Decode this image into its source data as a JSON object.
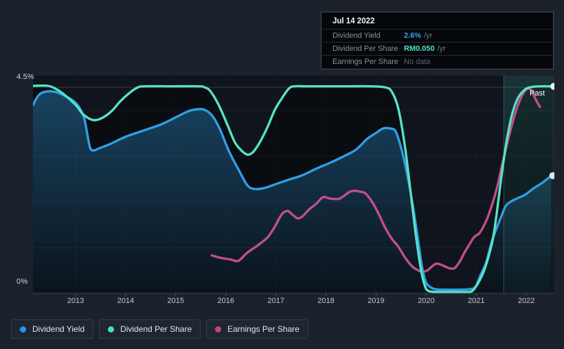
{
  "tooltip": {
    "date": "Jul 14 2022",
    "rows": [
      {
        "label": "Dividend Yield",
        "value": "2.6%",
        "unit": "/yr",
        "color": "#3aa4ea"
      },
      {
        "label": "Dividend Per Share",
        "value": "RM0.050",
        "unit": "/yr",
        "color": "#55e2c6"
      },
      {
        "label": "Earnings Per Share",
        "value": "No data",
        "unit": "",
        "color": "#5f6670"
      }
    ]
  },
  "axis": {
    "y_top_label": "4.5%",
    "y_bottom_label": "0%",
    "years": [
      "2013",
      "2014",
      "2015",
      "2016",
      "2017",
      "2018",
      "2019",
      "2020",
      "2021",
      "2022"
    ]
  },
  "past_label": "Past",
  "legend": {
    "items": [
      {
        "label": "Dividend Yield",
        "color": "#2196f3"
      },
      {
        "label": "Dividend Per Share",
        "color": "#45e0c2"
      },
      {
        "label": "Earnings Per Share",
        "color": "#c2447f"
      }
    ]
  },
  "chart_data": {
    "type": "line",
    "title": "Dividend history (yield, dividend per share, earnings per share)",
    "x_domain": [
      2012.15,
      2022.56
    ],
    "y_domain": [
      0,
      4.5
    ],
    "y_unit": "percent (yield axis; other series drawn on normalized hidden scales)",
    "y_gridlines_pct": [
      4.5,
      4,
      3,
      2,
      1,
      0
    ],
    "x_ticks": [
      2013,
      2014,
      2015,
      2016,
      2017,
      2018,
      2019,
      2020,
      2021,
      2022
    ],
    "past_divider_x": 2021.55,
    "legend_position": "bottom-left",
    "grid": true,
    "series": [
      {
        "name": "Earnings Per Share",
        "color": "#c14f8a",
        "fill": "none",
        "end_dot": false,
        "points": [
          [
            2015.72,
            0.83
          ],
          [
            2015.88,
            0.78
          ],
          [
            2016.09,
            0.74
          ],
          [
            2016.25,
            0.71
          ],
          [
            2016.43,
            0.89
          ],
          [
            2016.64,
            1.05
          ],
          [
            2016.84,
            1.23
          ],
          [
            2016.98,
            1.46
          ],
          [
            2017.12,
            1.73
          ],
          [
            2017.23,
            1.8
          ],
          [
            2017.32,
            1.73
          ],
          [
            2017.43,
            1.64
          ],
          [
            2017.53,
            1.68
          ],
          [
            2017.66,
            1.83
          ],
          [
            2017.8,
            1.95
          ],
          [
            2017.94,
            2.1
          ],
          [
            2018.08,
            2.07
          ],
          [
            2018.24,
            2.06
          ],
          [
            2018.35,
            2.12
          ],
          [
            2018.46,
            2.21
          ],
          [
            2018.56,
            2.24
          ],
          [
            2018.68,
            2.22
          ],
          [
            2018.79,
            2.18
          ],
          [
            2018.93,
            1.98
          ],
          [
            2019.04,
            1.76
          ],
          [
            2019.17,
            1.46
          ],
          [
            2019.31,
            1.2
          ],
          [
            2019.45,
            1.01
          ],
          [
            2019.58,
            0.78
          ],
          [
            2019.72,
            0.59
          ],
          [
            2019.83,
            0.51
          ],
          [
            2019.92,
            0.47
          ],
          [
            2020.02,
            0.5
          ],
          [
            2020.13,
            0.6
          ],
          [
            2020.21,
            0.65
          ],
          [
            2020.31,
            0.62
          ],
          [
            2020.41,
            0.57
          ],
          [
            2020.5,
            0.54
          ],
          [
            2020.58,
            0.56
          ],
          [
            2020.68,
            0.71
          ],
          [
            2020.77,
            0.9
          ],
          [
            2020.87,
            1.08
          ],
          [
            2020.96,
            1.23
          ],
          [
            2021.06,
            1.31
          ],
          [
            2021.13,
            1.43
          ],
          [
            2021.21,
            1.61
          ],
          [
            2021.28,
            1.82
          ],
          [
            2021.35,
            2.06
          ],
          [
            2021.42,
            2.33
          ],
          [
            2021.48,
            2.63
          ],
          [
            2021.55,
            2.96
          ],
          [
            2021.63,
            3.33
          ],
          [
            2021.72,
            3.71
          ],
          [
            2021.81,
            4.04
          ],
          [
            2021.91,
            4.31
          ],
          [
            2021.99,
            4.44
          ],
          [
            2022.05,
            4.47
          ],
          [
            2022.12,
            4.4
          ],
          [
            2022.18,
            4.25
          ],
          [
            2022.27,
            4.07
          ]
        ]
      },
      {
        "name": "Dividend Yield",
        "color": "#2f9ee5",
        "fill": "blue-gradient",
        "end_dot": true,
        "dot_fill": "#d2e9fb",
        "points": [
          [
            2012.15,
            4.11
          ],
          [
            2012.25,
            4.31
          ],
          [
            2012.38,
            4.4
          ],
          [
            2012.59,
            4.4
          ],
          [
            2012.79,
            4.31
          ],
          [
            2012.97,
            4.19
          ],
          [
            2013.08,
            4.05
          ],
          [
            2013.17,
            3.83
          ],
          [
            2013.23,
            3.51
          ],
          [
            2013.29,
            3.18
          ],
          [
            2013.36,
            3.12
          ],
          [
            2013.48,
            3.17
          ],
          [
            2013.69,
            3.26
          ],
          [
            2014.0,
            3.42
          ],
          [
            2014.37,
            3.56
          ],
          [
            2014.71,
            3.69
          ],
          [
            2015.03,
            3.86
          ],
          [
            2015.26,
            3.98
          ],
          [
            2015.43,
            4.02
          ],
          [
            2015.57,
            4.01
          ],
          [
            2015.72,
            3.89
          ],
          [
            2015.88,
            3.59
          ],
          [
            2016.06,
            3.11
          ],
          [
            2016.26,
            2.69
          ],
          [
            2016.43,
            2.36
          ],
          [
            2016.57,
            2.28
          ],
          [
            2016.77,
            2.3
          ],
          [
            2017.01,
            2.39
          ],
          [
            2017.25,
            2.48
          ],
          [
            2017.53,
            2.58
          ],
          [
            2017.8,
            2.72
          ],
          [
            2018.08,
            2.85
          ],
          [
            2018.35,
            2.99
          ],
          [
            2018.6,
            3.14
          ],
          [
            2018.83,
            3.38
          ],
          [
            2019.01,
            3.51
          ],
          [
            2019.14,
            3.6
          ],
          [
            2019.28,
            3.6
          ],
          [
            2019.39,
            3.54
          ],
          [
            2019.5,
            3.18
          ],
          [
            2019.61,
            2.66
          ],
          [
            2019.72,
            2.01
          ],
          [
            2019.83,
            1.23
          ],
          [
            2019.91,
            0.63
          ],
          [
            2019.99,
            0.26
          ],
          [
            2020.08,
            0.14
          ],
          [
            2020.19,
            0.09
          ],
          [
            2020.41,
            0.08
          ],
          [
            2020.65,
            0.08
          ],
          [
            2020.85,
            0.09
          ],
          [
            2020.98,
            0.14
          ],
          [
            2021.09,
            0.41
          ],
          [
            2021.2,
            0.68
          ],
          [
            2021.31,
            1.13
          ],
          [
            2021.42,
            1.46
          ],
          [
            2021.5,
            1.68
          ],
          [
            2021.59,
            1.91
          ],
          [
            2021.7,
            2.01
          ],
          [
            2021.81,
            2.07
          ],
          [
            2021.97,
            2.15
          ],
          [
            2022.13,
            2.28
          ],
          [
            2022.3,
            2.4
          ],
          [
            2022.41,
            2.49
          ],
          [
            2022.5,
            2.57
          ]
        ]
      },
      {
        "name": "Dividend Per Share",
        "color": "#57e2c6",
        "fill": "dark",
        "end_dot": true,
        "dot_fill": "#e3fbf4",
        "points": [
          [
            2012.15,
            4.53
          ],
          [
            2012.45,
            4.53
          ],
          [
            2012.66,
            4.43
          ],
          [
            2012.86,
            4.26
          ],
          [
            2013.03,
            4.08
          ],
          [
            2013.14,
            3.92
          ],
          [
            2013.25,
            3.83
          ],
          [
            2013.38,
            3.78
          ],
          [
            2013.55,
            3.84
          ],
          [
            2013.73,
            3.99
          ],
          [
            2013.89,
            4.19
          ],
          [
            2014.07,
            4.37
          ],
          [
            2014.23,
            4.49
          ],
          [
            2014.37,
            4.52
          ],
          [
            2014.92,
            4.52
          ],
          [
            2015.47,
            4.52
          ],
          [
            2015.57,
            4.5
          ],
          [
            2015.68,
            4.43
          ],
          [
            2015.85,
            4.13
          ],
          [
            2016.02,
            3.71
          ],
          [
            2016.18,
            3.3
          ],
          [
            2016.32,
            3.11
          ],
          [
            2016.43,
            3.03
          ],
          [
            2016.54,
            3.08
          ],
          [
            2016.68,
            3.3
          ],
          [
            2016.84,
            3.65
          ],
          [
            2016.98,
            4.01
          ],
          [
            2017.12,
            4.26
          ],
          [
            2017.25,
            4.46
          ],
          [
            2017.36,
            4.52
          ],
          [
            2017.66,
            4.52
          ],
          [
            2018.35,
            4.52
          ],
          [
            2018.9,
            4.52
          ],
          [
            2019.17,
            4.5
          ],
          [
            2019.31,
            4.41
          ],
          [
            2019.45,
            4.01
          ],
          [
            2019.58,
            3.18
          ],
          [
            2019.69,
            2.21
          ],
          [
            2019.79,
            1.31
          ],
          [
            2019.89,
            0.56
          ],
          [
            2019.97,
            0.18
          ],
          [
            2020.05,
            0.05
          ],
          [
            2020.27,
            0.03
          ],
          [
            2020.54,
            0.03
          ],
          [
            2020.82,
            0.03
          ],
          [
            2020.93,
            0.06
          ],
          [
            2021.04,
            0.23
          ],
          [
            2021.15,
            0.48
          ],
          [
            2021.26,
            0.86
          ],
          [
            2021.34,
            1.23
          ],
          [
            2021.41,
            1.76
          ],
          [
            2021.48,
            2.36
          ],
          [
            2021.55,
            2.93
          ],
          [
            2021.63,
            3.47
          ],
          [
            2021.72,
            3.93
          ],
          [
            2021.83,
            4.26
          ],
          [
            2021.96,
            4.44
          ],
          [
            2022.08,
            4.5
          ],
          [
            2022.26,
            4.52
          ],
          [
            2022.52,
            4.52
          ]
        ]
      }
    ]
  }
}
